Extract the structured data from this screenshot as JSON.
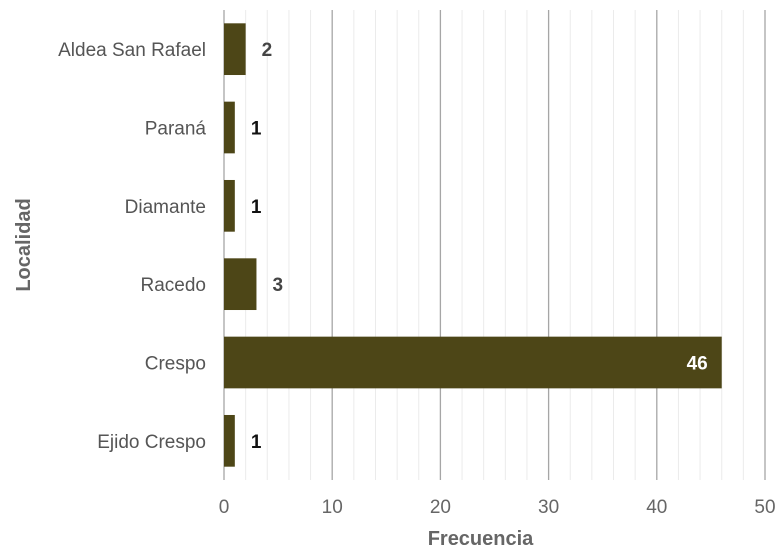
{
  "chart_data": {
    "type": "bar",
    "orientation": "horizontal",
    "categories": [
      "Aldea San Rafael",
      "Paraná",
      "Diamante",
      "Racedo",
      "Crespo",
      "Ejido Crespo"
    ],
    "values": [
      2,
      1,
      1,
      3,
      46,
      1
    ],
    "data_labels": [
      "2",
      "1",
      "1",
      "3",
      "46",
      "1"
    ],
    "xlabel": "Frecuencia",
    "ylabel": "Localidad",
    "xlim": [
      0,
      50
    ],
    "x_ticks": [
      "0",
      "10",
      "20",
      "30",
      "40",
      "50"
    ],
    "grid": true,
    "bar_color": "#4d4617"
  }
}
